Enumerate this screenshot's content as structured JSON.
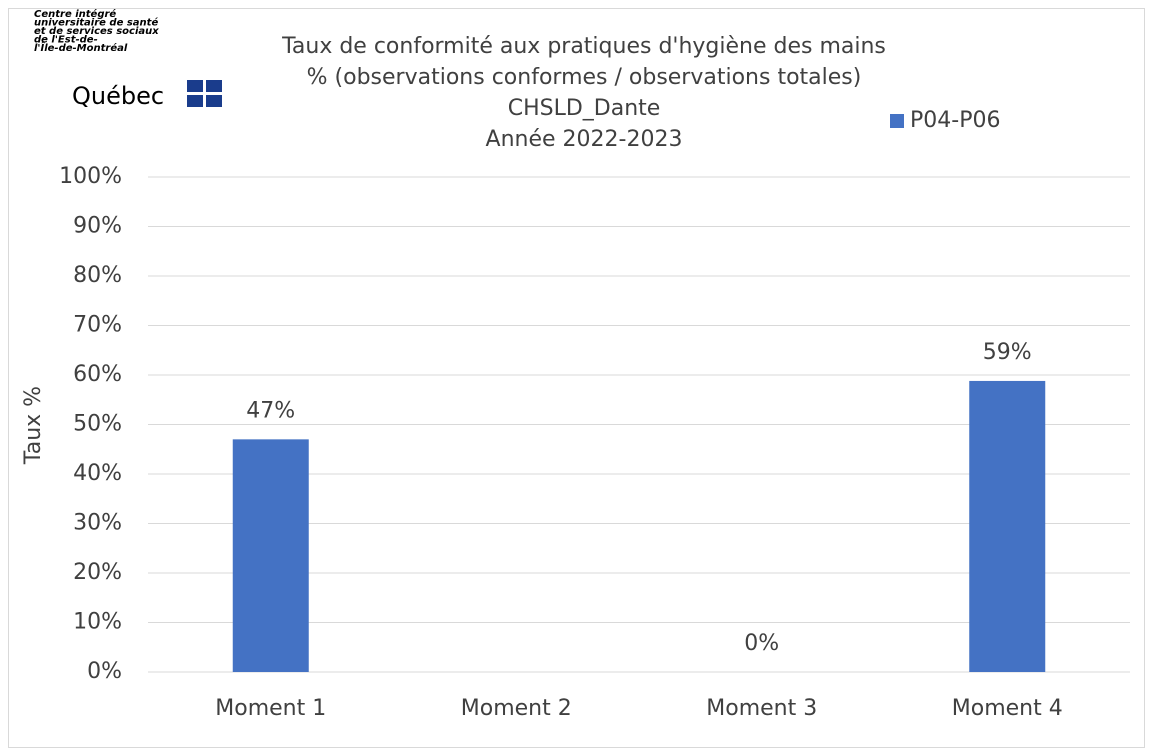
{
  "chart_data": {
    "type": "bar",
    "logo": {
      "lines": [
        "Centre intégré",
        "universitaire de santé",
        "et de services sociaux",
        "de l'Est-de-",
        "l'Île-de-Montréal"
      ],
      "name": "Québec"
    },
    "title": [
      "Taux de conformité aux pratiques d'hygiène des mains",
      "% (observations conformes / observations totales)",
      "CHSLD_Dante",
      "Année 2022-2023"
    ],
    "y_label": "Taux %",
    "categories": [
      "Moment 1",
      "Moment 2",
      "Moment 3",
      "Moment 4"
    ],
    "series": [
      {
        "name": "P04-P06",
        "color": "#4472c4",
        "values": [
          47,
          null,
          0,
          58.8
        ],
        "value_labels": [
          "47%",
          null,
          "0%",
          "59%"
        ]
      }
    ],
    "ylim": [
      0,
      100
    ],
    "yticks": [
      {
        "value": 0,
        "label": "0%"
      },
      {
        "value": 10,
        "label": "10%"
      },
      {
        "value": 20,
        "label": "20%"
      },
      {
        "value": 30,
        "label": "30%"
      },
      {
        "value": 40,
        "label": "40%"
      },
      {
        "value": 50,
        "label": "50%"
      },
      {
        "value": 60,
        "label": "60%"
      },
      {
        "value": 70,
        "label": "70%"
      },
      {
        "value": 80,
        "label": "80%"
      },
      {
        "value": 90,
        "label": "90%"
      },
      {
        "value": 100,
        "label": "100%"
      }
    ],
    "grid": true,
    "legend": "top-right"
  }
}
